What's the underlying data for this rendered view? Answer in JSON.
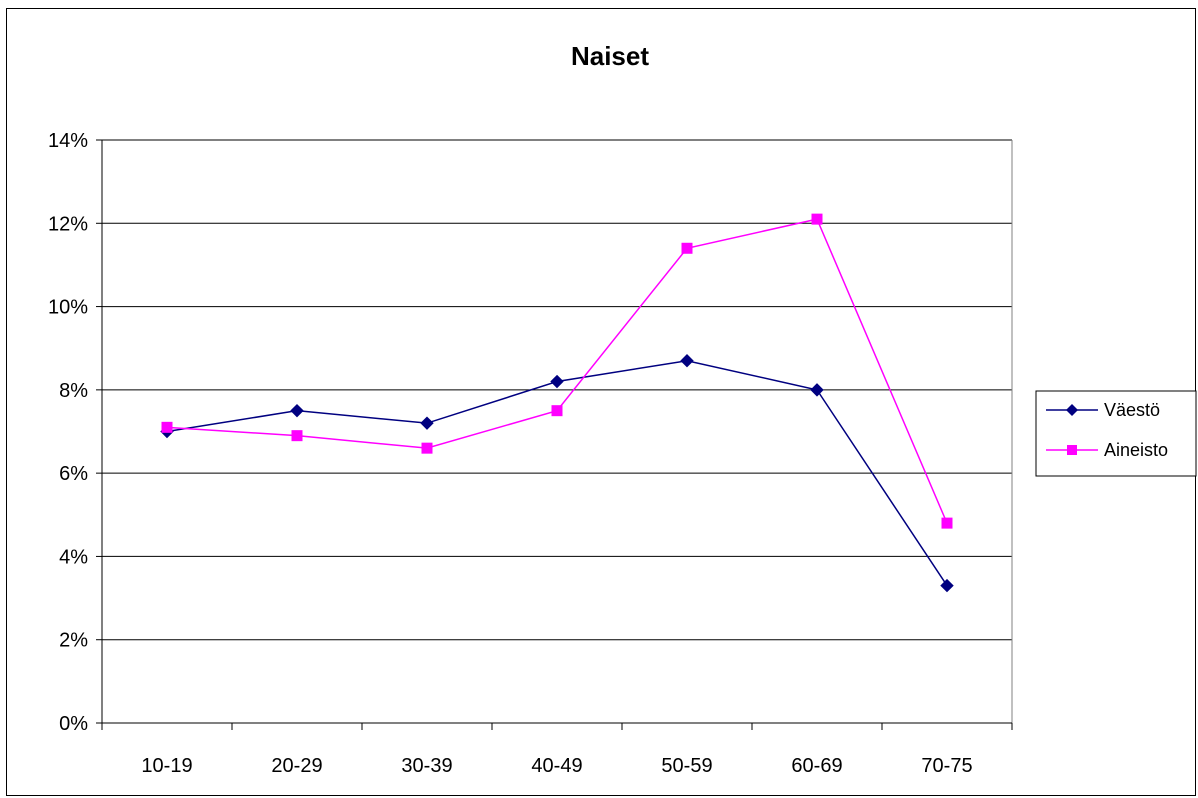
{
  "chart_data": {
    "type": "line",
    "title": "Naiset",
    "xlabel": "",
    "ylabel": "",
    "categories": [
      "10-19",
      "20-29",
      "30-39",
      "40-49",
      "50-59",
      "60-69",
      "70-75"
    ],
    "y_ticks": [
      "0%",
      "2%",
      "4%",
      "6%",
      "8%",
      "10%",
      "12%",
      "14%"
    ],
    "ylim": [
      0,
      14
    ],
    "grid": true,
    "legend_position": "right",
    "series": [
      {
        "name": "Väestö",
        "values": [
          7.0,
          7.5,
          7.2,
          8.2,
          8.7,
          8.0,
          3.3
        ],
        "color": "#000080",
        "marker": "diamond"
      },
      {
        "name": "Aineisto",
        "values": [
          7.1,
          6.9,
          6.6,
          7.5,
          11.4,
          12.1,
          4.8
        ],
        "color": "#FF00FF",
        "marker": "square"
      }
    ]
  }
}
